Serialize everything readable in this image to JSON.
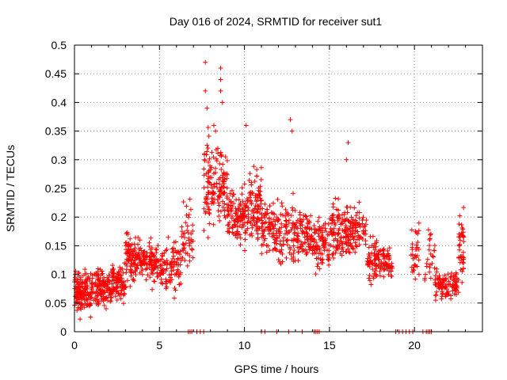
{
  "chart_data": {
    "type": "scatter",
    "title": "Day 016 of 2024, SRMTID for receiver sut1",
    "xlabel": "GPS time / hours",
    "ylabel": "SRMTID / TECUs",
    "xlim": [
      0,
      24
    ],
    "ylim": [
      0,
      0.5
    ],
    "x_ticks": [
      "0",
      "5",
      "10",
      "15",
      "20"
    ],
    "x_tick_values": [
      0,
      5,
      10,
      15,
      20
    ],
    "y_ticks": [
      "0",
      "0.05",
      "0.1",
      "0.15",
      "0.2",
      "0.25",
      "0.3",
      "0.35",
      "0.4",
      "0.45",
      "0.5"
    ],
    "y_tick_values": [
      0,
      0.05,
      0.1,
      0.15,
      0.2,
      0.25,
      0.3,
      0.35,
      0.4,
      0.45,
      0.5
    ],
    "grid": true,
    "marker": "+",
    "color": "#ff0000",
    "series": [
      {
        "name": "SRMTID",
        "segments": [
          {
            "x_range": [
              0.0,
              1.0
            ],
            "y_mean": 0.07,
            "y_spread": 0.028,
            "density": 140
          },
          {
            "x_range": [
              1.0,
              2.2
            ],
            "y_mean": 0.075,
            "y_spread": 0.025,
            "density": 140
          },
          {
            "x_range": [
              2.2,
              3.0
            ],
            "y_mean": 0.085,
            "y_spread": 0.025,
            "density": 90
          },
          {
            "x_range": [
              3.0,
              3.6
            ],
            "y_mean": 0.13,
            "y_spread": 0.035,
            "density": 80
          },
          {
            "x_range": [
              3.6,
              4.5
            ],
            "y_mean": 0.125,
            "y_spread": 0.025,
            "density": 80
          },
          {
            "x_range": [
              4.5,
              5.2
            ],
            "y_mean": 0.115,
            "y_spread": 0.03,
            "density": 70
          },
          {
            "x_range": [
              5.2,
              6.3
            ],
            "y_mean": 0.12,
            "y_spread": 0.035,
            "density": 80
          },
          {
            "x_range": [
              6.3,
              7.0
            ],
            "y_mean": 0.17,
            "y_spread": 0.05,
            "density": 45
          },
          {
            "x_range": [
              7.6,
              8.2
            ],
            "y_mean": 0.26,
            "y_spread": 0.07,
            "density": 70
          },
          {
            "x_range": [
              8.2,
              9.0
            ],
            "y_mean": 0.25,
            "y_spread": 0.06,
            "density": 80
          },
          {
            "x_range": [
              9.0,
              10.0
            ],
            "y_mean": 0.2,
            "y_spread": 0.035,
            "density": 100
          },
          {
            "x_range": [
              10.0,
              11.0
            ],
            "y_mean": 0.22,
            "y_spread": 0.05,
            "density": 110
          },
          {
            "x_range": [
              11.0,
              12.0
            ],
            "y_mean": 0.18,
            "y_spread": 0.04,
            "density": 90
          },
          {
            "x_range": [
              12.0,
              13.0
            ],
            "y_mean": 0.17,
            "y_spread": 0.045,
            "density": 80
          },
          {
            "x_range": [
              13.0,
              14.0
            ],
            "y_mean": 0.17,
            "y_spread": 0.035,
            "density": 90
          },
          {
            "x_range": [
              14.0,
              15.0
            ],
            "y_mean": 0.155,
            "y_spread": 0.035,
            "density": 90
          },
          {
            "x_range": [
              15.0,
              16.0
            ],
            "y_mean": 0.175,
            "y_spread": 0.04,
            "density": 100
          },
          {
            "x_range": [
              16.0,
              17.2
            ],
            "y_mean": 0.175,
            "y_spread": 0.04,
            "density": 100
          },
          {
            "x_range": [
              17.2,
              18.0
            ],
            "y_mean": 0.125,
            "y_spread": 0.03,
            "density": 70
          },
          {
            "x_range": [
              18.0,
              18.7
            ],
            "y_mean": 0.12,
            "y_spread": 0.025,
            "density": 55
          },
          {
            "x_range": [
              19.8,
              20.3
            ],
            "y_mean": 0.14,
            "y_spread": 0.04,
            "density": 35
          },
          {
            "x_range": [
              20.6,
              21.2
            ],
            "y_mean": 0.13,
            "y_spread": 0.03,
            "density": 25
          },
          {
            "x_range": [
              21.2,
              22.6
            ],
            "y_mean": 0.08,
            "y_spread": 0.02,
            "density": 110
          },
          {
            "x_range": [
              22.6,
              22.9
            ],
            "y_mean": 0.15,
            "y_spread": 0.04,
            "density": 40
          }
        ],
        "outliers": [
          {
            "x": 7.7,
            "y": 0.47
          },
          {
            "x": 8.6,
            "y": 0.46
          },
          {
            "x": 8.6,
            "y": 0.44
          },
          {
            "x": 7.7,
            "y": 0.42
          },
          {
            "x": 8.6,
            "y": 0.42
          },
          {
            "x": 8.7,
            "y": 0.4
          },
          {
            "x": 7.8,
            "y": 0.39
          },
          {
            "x": 10.1,
            "y": 0.36
          },
          {
            "x": 12.7,
            "y": 0.37
          },
          {
            "x": 12.8,
            "y": 0.35
          },
          {
            "x": 16.1,
            "y": 0.33
          },
          {
            "x": 16.0,
            "y": 0.3
          },
          {
            "x": 8.2,
            "y": 0.36
          },
          {
            "x": 8.3,
            "y": 0.35
          }
        ]
      },
      {
        "name": "zero-level",
        "y": 0,
        "x_values": [
          6.7,
          6.8,
          6.9,
          7.2,
          7.4,
          7.6,
          11.0,
          11.2,
          11.9,
          12.6,
          13.4,
          14.1,
          14.2,
          14.3,
          14.4,
          18.9,
          19.1,
          19.3,
          19.5,
          19.7,
          19.9,
          20.5,
          20.7,
          20.8,
          20.9,
          21.0
        ]
      }
    ]
  }
}
